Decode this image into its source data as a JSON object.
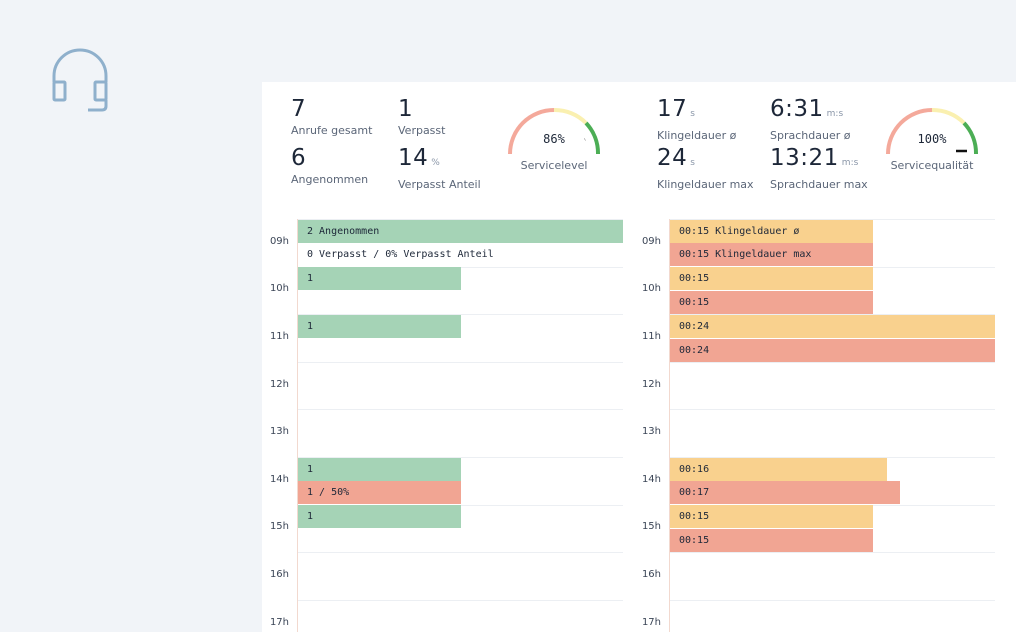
{
  "kpis_left": [
    {
      "value": "7",
      "unit": "",
      "label": "Anrufe gesamt"
    },
    {
      "value": "1",
      "unit": "",
      "label": "Verpasst"
    },
    {
      "value": "6",
      "unit": "",
      "label": "Angenommen"
    },
    {
      "value": "14",
      "unit": "%",
      "label": "Verpasst Anteil"
    }
  ],
  "kpis_right": [
    {
      "value": "17",
      "unit": "s",
      "label": "Klingeldauer ø"
    },
    {
      "value": "6:31",
      "unit": "m:s",
      "label": "Sprachdauer ø"
    },
    {
      "value": "24",
      "unit": "s",
      "label": "Klingeldauer max"
    },
    {
      "value": "13:21",
      "unit": "m:s",
      "label": "Sprachdauer max"
    }
  ],
  "gauges": [
    {
      "value": "86%",
      "label": "Servicelevel",
      "fraction": 0.86
    },
    {
      "value": "100%",
      "label": "Servicequalität",
      "fraction": 1.0
    }
  ],
  "colors": {
    "accepted": "#a5d3b6",
    "missed": "#f1a593",
    "ring": "#f9d18e",
    "talk": "#f1a593",
    "icon": "#8fb0cc"
  },
  "hours": [
    "09h",
    "10h",
    "11h",
    "12h",
    "13h",
    "14h",
    "15h",
    "16h",
    "17h"
  ],
  "calls_chart": {
    "max_value": 2,
    "bars": [
      {
        "slot": 0,
        "value": 2,
        "kind": "g",
        "label": "2 Angenommen"
      },
      {
        "slot": 1,
        "value": 0,
        "kind": "t",
        "label": "0 Verpasst / 0% Verpasst Anteil"
      },
      {
        "slot": 2,
        "value": 1,
        "kind": "g",
        "label": "1"
      },
      {
        "slot": 4,
        "value": 1,
        "kind": "g",
        "label": "1"
      },
      {
        "slot": 10,
        "value": 1,
        "kind": "g",
        "label": "1"
      },
      {
        "slot": 11,
        "value": 1,
        "kind": "r",
        "label": "1 / 50%"
      },
      {
        "slot": 12,
        "value": 1,
        "kind": "g",
        "label": "1"
      }
    ]
  },
  "duration_chart": {
    "max_value": 24,
    "bars": [
      {
        "slot": 0,
        "value": 15,
        "kind": "y",
        "label": "00:15 Klingeldauer ø"
      },
      {
        "slot": 1,
        "value": 15,
        "kind": "r",
        "label": "00:15 Klingeldauer max"
      },
      {
        "slot": 2,
        "value": 15,
        "kind": "y",
        "label": "00:15"
      },
      {
        "slot": 3,
        "value": 15,
        "kind": "r",
        "label": "00:15"
      },
      {
        "slot": 4,
        "value": 24,
        "kind": "y",
        "label": "00:24"
      },
      {
        "slot": 5,
        "value": 24,
        "kind": "r",
        "label": "00:24"
      },
      {
        "slot": 10,
        "value": 16,
        "kind": "y",
        "label": "00:16"
      },
      {
        "slot": 11,
        "value": 17,
        "kind": "r",
        "label": "00:17"
      },
      {
        "slot": 12,
        "value": 15,
        "kind": "y",
        "label": "00:15"
      },
      {
        "slot": 13,
        "value": 15,
        "kind": "r",
        "label": "00:15"
      }
    ]
  }
}
